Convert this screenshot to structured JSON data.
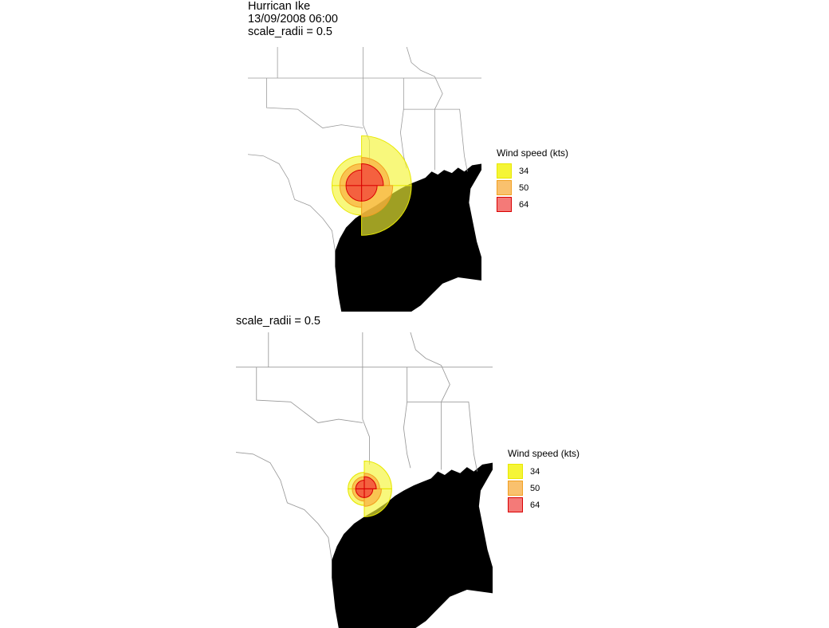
{
  "panel1": {
    "title_lines": [
      "Hurrican Ike",
      "13/09/2008 06:00",
      "scale_radii = 0.5"
    ]
  },
  "panel2": {
    "title_lines": [
      "scale_radii = 0.5"
    ]
  },
  "legend": {
    "title": "Wind speed (kts)",
    "items": [
      {
        "label": "34",
        "fill": "#f5f536",
        "stroke": "#e8e800"
      },
      {
        "label": "50",
        "fill": "#f9ae3e",
        "stroke": "#f2a020"
      },
      {
        "label": "64",
        "fill": "#f2403a",
        "stroke": "#d90000"
      }
    ]
  },
  "colors": {
    "land": "#ffffff",
    "water": "#000000",
    "borders": "#9a9a9a",
    "radius_34": "#f5f536",
    "radius_50": "#f9ae3e",
    "radius_64": "#f2403a"
  }
}
